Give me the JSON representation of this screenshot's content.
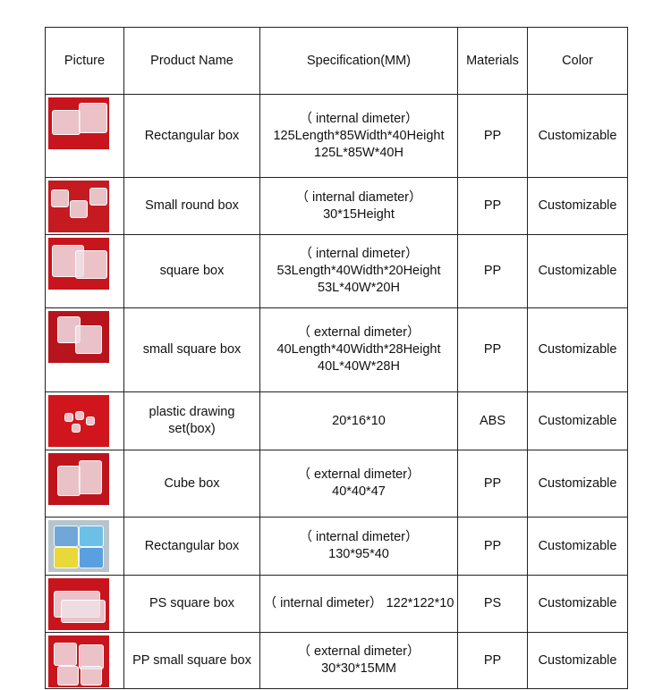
{
  "headers": [
    "Picture",
    "Product Name",
    "Specification(MM)",
    "Materials",
    "Color"
  ],
  "rows": [
    {
      "name": "Rectangular box",
      "spec": "（ internal dimeter）\n125Length*85Width*40Height\n125L*85W*40H",
      "material": "PP",
      "color": "Customizable",
      "picture": "rectangular-box-photo",
      "picture_bg": "#c8141c"
    },
    {
      "name": "Small round box",
      "spec": "（ internal diameter）\n30*15Height",
      "material": "PP",
      "color": "Customizable",
      "picture": "round-box-photo",
      "picture_bg": "#c41a20"
    },
    {
      "name": "square box",
      "spec": "（ internal dimeter）\n53Length*40Width*20Height\n53L*40W*20H",
      "material": "PP",
      "color": "Customizable",
      "picture": "square-box-photo",
      "picture_bg": "#c8141c"
    },
    {
      "name": "small square box",
      "spec": "（ external dimeter）\n40Length*40Width*28Height\n40L*40W*28H",
      "material": "PP",
      "color": "Customizable",
      "picture": "small-square-box-photo",
      "picture_bg": "#b8141c"
    },
    {
      "name": "plastic drawing set(box)",
      "spec": "20*16*10",
      "material": "ABS",
      "color": "Customizable",
      "picture": "drawing-set-photo",
      "picture_bg": "#d0161c"
    },
    {
      "name": "Cube box",
      "spec": "（ external dimeter）\n40*40*47",
      "material": "PP",
      "color": "Customizable",
      "picture": "cube-box-photo",
      "picture_bg": "#c0141c"
    },
    {
      "name": "Rectangular box",
      "spec": "（ internal dimeter）\n130*95*40",
      "material": "PP",
      "color": "Customizable",
      "picture": "colored-rectangular-box-photo",
      "picture_bg": "#b8c4cc"
    },
    {
      "name": "PS square box",
      "spec": "（ internal dimeter）  122*122*10",
      "material": "PS",
      "color": "Customizable",
      "picture": "ps-square-box-photo",
      "picture_bg": "#c8141c"
    },
    {
      "name": "PP small square box",
      "spec": "（ external dimeter）\n30*30*15MM",
      "material": "PP",
      "color": "Customizable",
      "picture": "pp-small-square-box-photo",
      "picture_bg": "#c8141c"
    }
  ]
}
